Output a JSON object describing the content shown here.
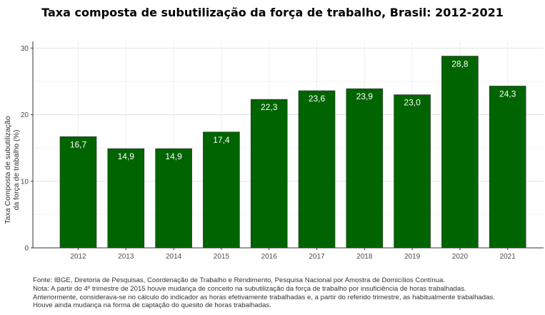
{
  "title": "Taxa composta de subutilização da força de trabalho, Brasil: 2012-2021",
  "chart_data": {
    "type": "bar",
    "categories": [
      "2012",
      "2013",
      "2014",
      "2015",
      "2016",
      "2017",
      "2018",
      "2019",
      "2020",
      "2021"
    ],
    "values": [
      16.7,
      14.9,
      14.9,
      17.4,
      22.3,
      23.6,
      23.9,
      23.0,
      28.8,
      24.3
    ],
    "value_labels": [
      "16,7",
      "14,9",
      "14,9",
      "17,4",
      "22,3",
      "23,6",
      "23,9",
      "23,0",
      "28,8",
      "24,3"
    ],
    "ylabel_lines": [
      "Taxa Composta de subutilização",
      "da força de trabalho (%)"
    ],
    "ylim": [
      0,
      31
    ],
    "yticks": [
      0,
      10,
      20,
      30
    ],
    "bar_color": "#006400",
    "grid": true
  },
  "notes": [
    "Fonte: IBGE, Diretoria de Pesquisas, Coordenação de Trabalho e Rendimento, Pesquisa Nacional por Amostra de Domicílios Contínua.",
    "Nota: A partir do 4º trimestre de 2015 houve mudança de conceito na subutilização da força de trabalho por insuficiência de horas trabalhadas.",
    "Anteriormente, considerava-se no cálculo do indicador as horas efetivamente trabalhadas e, a partir do referido trimestre, as habitualmente trabalhadas.",
    "Houve ainda mudança na forma de captação do quesito de horas trabalhadas."
  ]
}
